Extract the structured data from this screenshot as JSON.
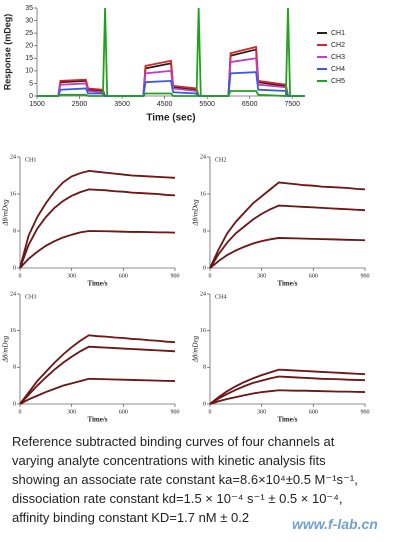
{
  "chart_data": [
    {
      "type": "line",
      "xlabel": "Time (sec)",
      "ylabel": "Response (mDeg)",
      "x": [
        1500,
        2000,
        2050,
        2650,
        2700,
        3050,
        3100,
        3150,
        3500,
        4000,
        4050,
        4650,
        4700,
        5250,
        5300,
        5350,
        5500,
        6000,
        6050,
        6650,
        6700,
        7350,
        7400,
        7450,
        7800
      ],
      "xlim": [
        1500,
        7800
      ],
      "xticks": [
        1500,
        2500,
        3500,
        4500,
        5500,
        6500,
        7500
      ],
      "ylim": [
        0,
        35
      ],
      "yticks": [
        0,
        5,
        10,
        15,
        20,
        25,
        30,
        35
      ],
      "legend": "right",
      "series": [
        {
          "name": "CH1",
          "color": "#222222",
          "values": [
            0,
            0,
            5.5,
            6,
            2.5,
            2,
            0,
            0,
            0,
            0,
            11,
            13,
            3.5,
            2.5,
            0,
            0,
            0,
            0,
            16,
            18.5,
            5.5,
            4,
            0,
            0,
            0
          ]
        },
        {
          "name": "CH2",
          "color": "#d62728",
          "values": [
            0,
            0,
            6,
            6.5,
            3,
            2.5,
            0,
            0,
            0,
            0,
            12,
            14,
            4,
            3,
            0,
            0,
            0,
            0,
            17,
            19.5,
            6,
            4.5,
            0,
            0,
            0
          ]
        },
        {
          "name": "CH3",
          "color": "#c040c0",
          "values": [
            0,
            0,
            4.5,
            5,
            2,
            1.5,
            0,
            0,
            0,
            0,
            9,
            10,
            3,
            2,
            0,
            0,
            0,
            0,
            13.5,
            15,
            4.5,
            3.5,
            0,
            0,
            0
          ]
        },
        {
          "name": "CH4",
          "color": "#3b5bdb",
          "values": [
            0,
            0,
            2.5,
            3,
            1,
            1,
            0,
            0,
            0,
            0,
            5.5,
            6,
            1.5,
            1,
            0,
            0,
            0,
            0,
            9,
            9.5,
            2.5,
            2,
            0,
            0,
            0
          ]
        },
        {
          "name": "CH5",
          "color": "#1fa31f",
          "values": [
            0,
            0,
            0.5,
            0.5,
            0,
            0,
            35,
            0,
            0,
            0,
            1,
            1,
            0,
            0,
            35,
            0,
            0,
            0,
            2,
            2,
            0.5,
            0,
            35,
            0,
            0
          ]
        }
      ]
    },
    {
      "type": "line",
      "title": "CH1",
      "xlabel": "Time/s",
      "ylabel": "Δθ/mDeg",
      "x": [
        0,
        50,
        100,
        150,
        200,
        250,
        300,
        350,
        400,
        450,
        500,
        550,
        600,
        650,
        700,
        750,
        800,
        850,
        900
      ],
      "xlim": [
        0,
        900
      ],
      "xticks": [
        0,
        300,
        600,
        900
      ],
      "ylim": [
        0,
        24
      ],
      "yticks": [
        0,
        8,
        16,
        24
      ],
      "series": [
        {
          "color": "#c00000",
          "values": [
            0,
            7,
            11,
            14,
            16.5,
            18.5,
            19.8,
            20.5,
            21,
            20.8,
            20.6,
            20.4,
            20.2,
            20,
            19.9,
            19.8,
            19.7,
            19.6,
            19.5
          ]
        },
        {
          "color": "#c00000",
          "values": [
            0,
            5,
            8.5,
            11,
            13,
            14.5,
            15.6,
            16.4,
            17,
            16.9,
            16.8,
            16.6,
            16.5,
            16.3,
            16.2,
            16.1,
            16,
            15.8,
            15.7
          ]
        },
        {
          "color": "#c00000",
          "values": [
            0,
            2,
            3.5,
            4.8,
            5.8,
            6.6,
            7.2,
            7.7,
            8,
            7.98,
            7.95,
            7.9,
            7.85,
            7.8,
            7.8,
            7.75,
            7.7,
            7.7,
            7.65
          ]
        }
      ]
    },
    {
      "type": "line",
      "title": "CH2",
      "xlabel": "Time/s",
      "ylabel": "Δθ/mDeg",
      "x": [
        0,
        50,
        100,
        150,
        200,
        250,
        300,
        350,
        400,
        450,
        500,
        550,
        600,
        650,
        700,
        750,
        800,
        850,
        900
      ],
      "xlim": [
        0,
        900
      ],
      "xticks": [
        0,
        300,
        600,
        900
      ],
      "ylim": [
        0,
        24
      ],
      "yticks": [
        0,
        8,
        16,
        24
      ],
      "series": [
        {
          "color": "#c00000",
          "values": [
            0,
            4,
            7.5,
            10,
            12,
            14,
            15.5,
            17,
            18.5,
            18.3,
            18.1,
            17.9,
            17.8,
            17.6,
            17.5,
            17.4,
            17.3,
            17.1,
            17
          ]
        },
        {
          "color": "#c00000",
          "values": [
            0,
            3,
            5.5,
            7.5,
            9,
            10.5,
            11.7,
            12.7,
            13.5,
            13.4,
            13.3,
            13.2,
            13.1,
            13,
            12.9,
            12.8,
            12.7,
            12.6,
            12.5
          ]
        },
        {
          "color": "#c00000",
          "values": [
            0,
            1.5,
            2.8,
            3.8,
            4.6,
            5.3,
            5.8,
            6.2,
            6.5,
            6.45,
            6.4,
            6.35,
            6.3,
            6.25,
            6.2,
            6.15,
            6.1,
            6.05,
            6
          ]
        }
      ]
    },
    {
      "type": "line",
      "title": "CH3",
      "xlabel": "Time/s",
      "ylabel": "Δθ/mDeg",
      "x": [
        0,
        50,
        100,
        150,
        200,
        250,
        300,
        350,
        400,
        450,
        500,
        550,
        600,
        650,
        700,
        750,
        800,
        850,
        900
      ],
      "xlim": [
        0,
        900
      ],
      "xticks": [
        0,
        300,
        600,
        900
      ],
      "ylim": [
        0,
        24
      ],
      "yticks": [
        0,
        8,
        16,
        24
      ],
      "series": [
        {
          "color": "#c00000",
          "values": [
            0,
            2.5,
            5,
            7,
            9,
            10.8,
            12.4,
            13.8,
            15,
            14.8,
            14.7,
            14.5,
            14.4,
            14.2,
            14.1,
            13.9,
            13.8,
            13.6,
            13.5
          ]
        },
        {
          "color": "#c00000",
          "values": [
            0,
            2,
            4,
            5.8,
            7.5,
            9,
            10.3,
            11.5,
            12.5,
            12.4,
            12.3,
            12.2,
            12.1,
            12,
            11.9,
            11.8,
            11.7,
            11.6,
            11.5
          ]
        },
        {
          "color": "#c00000",
          "values": [
            0,
            1,
            1.8,
            2.6,
            3.3,
            4,
            4.5,
            5,
            5.5,
            5.45,
            5.4,
            5.35,
            5.3,
            5.25,
            5.2,
            5.15,
            5.1,
            5.05,
            5
          ]
        }
      ]
    },
    {
      "type": "line",
      "title": "CH4",
      "xlabel": "Time/s",
      "ylabel": "Δθ/mDeg",
      "x": [
        0,
        50,
        100,
        150,
        200,
        250,
        300,
        350,
        400,
        450,
        500,
        550,
        600,
        650,
        700,
        750,
        800,
        850,
        900
      ],
      "xlim": [
        0,
        900
      ],
      "xticks": [
        0,
        300,
        600,
        900
      ],
      "ylim": [
        0,
        24
      ],
      "yticks": [
        0,
        8,
        16,
        24
      ],
      "series": [
        {
          "color": "#c00000",
          "values": [
            0,
            1.5,
            2.8,
            3.9,
            4.8,
            5.6,
            6.3,
            6.9,
            7.5,
            7.4,
            7.3,
            7.2,
            7.1,
            7,
            6.9,
            6.8,
            6.7,
            6.6,
            6.5
          ]
        },
        {
          "color": "#c00000",
          "values": [
            0,
            1.2,
            2.2,
            3.1,
            3.9,
            4.6,
            5.1,
            5.6,
            6,
            5.9,
            5.8,
            5.7,
            5.6,
            5.5,
            5.45,
            5.4,
            5.3,
            5.25,
            5.2
          ]
        },
        {
          "color": "#c00000",
          "values": [
            0,
            0.6,
            1.1,
            1.5,
            1.9,
            2.3,
            2.6,
            2.8,
            3,
            2.95,
            2.9,
            2.9,
            2.85,
            2.8,
            2.75,
            2.7,
            2.7,
            2.65,
            2.6
          ]
        }
      ]
    }
  ],
  "caption": [
    "Reference subtracted binding curves of four channels at",
    "varying analyte concentrations with kinetic analysis fits",
    "showing an associate rate constant ka=8.6×10⁴±0.5 M⁻¹s⁻¹,",
    "dissociation rate constant kd=1.5 × 10⁻⁴ s⁻¹ ± 0.5 × 10⁻⁴,",
    "affinity binding constant KD=1.7 nM ± 0.2"
  ],
  "watermark": "www.f-lab.cn"
}
